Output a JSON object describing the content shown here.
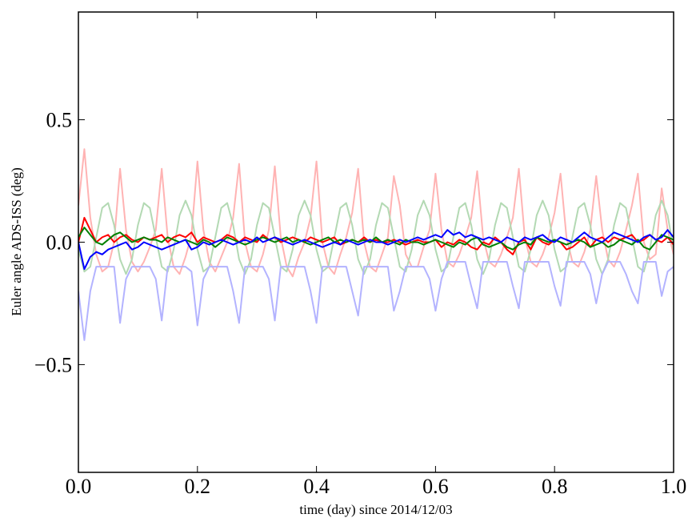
{
  "chart_data": {
    "type": "line",
    "x_label": "time (day) since 2014/12/03",
    "y_label": "Euler angle ADS-ISS (deg)",
    "xlim": [
      0,
      1
    ],
    "ylim": [
      -0.94,
      0.94
    ],
    "xticks": [
      {
        "value": 0,
        "label": "0.0"
      },
      0.2,
      0.4,
      0.6,
      0.8,
      {
        "value": 1,
        "label": "1.0"
      }
    ],
    "yticks": [
      {
        "value": -0.5,
        "label": "−0.5"
      },
      {
        "value": 0,
        "label": "0.0"
      },
      0.5
    ],
    "x": [
      0,
      0.01,
      0.02,
      0.03,
      0.04,
      0.05,
      0.06,
      0.07,
      0.08,
      0.09,
      0.1,
      0.11,
      0.12,
      0.13,
      0.14,
      0.15,
      0.16,
      0.17,
      0.18,
      0.19,
      0.2,
      0.21,
      0.22,
      0.23,
      0.24,
      0.25,
      0.26,
      0.27,
      0.28,
      0.29,
      0.3,
      0.31,
      0.32,
      0.33,
      0.34,
      0.35,
      0.36,
      0.37,
      0.38,
      0.39,
      0.4,
      0.41,
      0.42,
      0.43,
      0.44,
      0.45,
      0.46,
      0.47,
      0.48,
      0.49,
      0.5,
      0.51,
      0.52,
      0.53,
      0.54,
      0.55,
      0.56,
      0.57,
      0.58,
      0.59,
      0.6,
      0.61,
      0.62,
      0.63,
      0.64,
      0.65,
      0.66,
      0.67,
      0.68,
      0.69,
      0.7,
      0.71,
      0.72,
      0.73,
      0.74,
      0.75,
      0.76,
      0.77,
      0.78,
      0.79,
      0.8,
      0.81,
      0.82,
      0.83,
      0.84,
      0.85,
      0.86,
      0.87,
      0.88,
      0.89,
      0.9,
      0.91,
      0.92,
      0.93,
      0.94,
      0.95,
      0.96,
      0.97,
      0.98,
      0.99,
      1
    ],
    "series": [
      {
        "color": "#ffb3b3",
        "values": [
          0.15,
          0.38,
          0.1,
          -0.05,
          -0.12,
          -0.1,
          0.0,
          0.3,
          0.05,
          -0.08,
          -0.12,
          -0.08,
          -0.02,
          0.05,
          0.3,
          0.02,
          -0.1,
          -0.13,
          -0.06,
          0.03,
          0.33,
          0.05,
          -0.08,
          -0.12,
          -0.06,
          0.0,
          0.1,
          0.32,
          0.0,
          -0.1,
          -0.12,
          -0.05,
          0.05,
          0.31,
          0.02,
          -0.1,
          -0.14,
          -0.06,
          0.0,
          0.1,
          0.33,
          0.0,
          -0.1,
          -0.13,
          -0.05,
          0.02,
          0.12,
          0.3,
          0.0,
          -0.1,
          -0.12,
          -0.05,
          0.02,
          0.27,
          0.15,
          -0.05,
          -0.1,
          -0.1,
          -0.02,
          0.05,
          0.28,
          0.05,
          -0.08,
          -0.1,
          -0.05,
          0.02,
          0.1,
          0.29,
          0.02,
          -0.08,
          -0.1,
          -0.05,
          0.02,
          0.1,
          0.3,
          0.02,
          -0.08,
          -0.1,
          -0.05,
          0.02,
          0.12,
          0.28,
          0.02,
          -0.08,
          -0.1,
          -0.04,
          0.05,
          0.27,
          0.05,
          -0.07,
          -0.1,
          -0.04,
          0.05,
          0.15,
          0.28,
          0.0,
          -0.07,
          -0.05,
          0.22,
          0.05,
          -0.05
        ]
      },
      {
        "color": "#b3d9b3",
        "values": [
          -0.03,
          -0.12,
          -0.1,
          0.02,
          0.14,
          0.16,
          0.07,
          -0.07,
          -0.13,
          -0.07,
          0.07,
          0.16,
          0.14,
          0.02,
          -0.1,
          -0.12,
          -0.03,
          0.11,
          0.17,
          0.11,
          -0.03,
          -0.12,
          -0.1,
          0.02,
          0.14,
          0.16,
          0.07,
          -0.07,
          -0.13,
          -0.07,
          0.07,
          0.16,
          0.14,
          0.02,
          -0.1,
          -0.12,
          -0.03,
          0.11,
          0.17,
          0.11,
          -0.03,
          -0.12,
          -0.1,
          0.02,
          0.14,
          0.16,
          0.07,
          -0.07,
          -0.13,
          -0.07,
          0.07,
          0.16,
          0.14,
          0.02,
          -0.1,
          -0.12,
          -0.03,
          0.11,
          0.17,
          0.11,
          -0.03,
          -0.12,
          -0.1,
          0.02,
          0.14,
          0.16,
          0.07,
          -0.07,
          -0.13,
          -0.07,
          0.07,
          0.16,
          0.14,
          0.02,
          -0.1,
          -0.12,
          -0.03,
          0.11,
          0.17,
          0.11,
          -0.03,
          -0.12,
          -0.1,
          0.02,
          0.14,
          0.16,
          0.07,
          -0.07,
          -0.13,
          -0.07,
          0.07,
          0.16,
          0.14,
          0.02,
          -0.1,
          -0.12,
          -0.03,
          0.11,
          0.17,
          0.11,
          -0.03
        ]
      },
      {
        "color": "#b3b3ff",
        "values": [
          -0.2,
          -0.4,
          -0.2,
          -0.1,
          -0.1,
          -0.1,
          -0.1,
          -0.33,
          -0.15,
          -0.1,
          -0.1,
          -0.1,
          -0.1,
          -0.15,
          -0.32,
          -0.1,
          -0.1,
          -0.1,
          -0.1,
          -0.12,
          -0.34,
          -0.15,
          -0.1,
          -0.1,
          -0.1,
          -0.1,
          -0.2,
          -0.33,
          -0.1,
          -0.1,
          -0.1,
          -0.1,
          -0.15,
          -0.32,
          -0.1,
          -0.1,
          -0.1,
          -0.1,
          -0.1,
          -0.2,
          -0.33,
          -0.1,
          -0.1,
          -0.1,
          -0.1,
          -0.1,
          -0.2,
          -0.3,
          -0.1,
          -0.1,
          -0.1,
          -0.1,
          -0.1,
          -0.28,
          -0.2,
          -0.1,
          -0.1,
          -0.1,
          -0.1,
          -0.15,
          -0.28,
          -0.15,
          -0.08,
          -0.08,
          -0.08,
          -0.08,
          -0.18,
          -0.27,
          -0.08,
          -0.08,
          -0.08,
          -0.08,
          -0.08,
          -0.18,
          -0.27,
          -0.08,
          -0.08,
          -0.08,
          -0.08,
          -0.08,
          -0.18,
          -0.26,
          -0.08,
          -0.08,
          -0.08,
          -0.08,
          -0.13,
          -0.25,
          -0.13,
          -0.08,
          -0.08,
          -0.08,
          -0.13,
          -0.2,
          -0.25,
          -0.08,
          -0.08,
          -0.08,
          -0.22,
          -0.12,
          -0.1
        ]
      },
      {
        "color": "#ff0000",
        "values": [
          0,
          0.1,
          0.05,
          0.0,
          0.02,
          0.03,
          0.0,
          0.02,
          0.03,
          0.01,
          0.0,
          0.02,
          0.01,
          0.02,
          0.03,
          0.0,
          0.02,
          0.03,
          0.02,
          0.04,
          0.0,
          0.02,
          0.01,
          0.0,
          0.01,
          0.03,
          0.02,
          0.0,
          0.02,
          0.01,
          0.0,
          0.03,
          0.01,
          0.02,
          0.0,
          0.01,
          0.02,
          0.01,
          0.0,
          0.02,
          0.01,
          0.0,
          0.01,
          0.02,
          -0.01,
          0.0,
          0.01,
          0.0,
          0.02,
          0.0,
          0.01,
          0.0,
          0.0,
          0.01,
          0.0,
          -0.01,
          0.0,
          0.01,
          0.0,
          0.0,
          0.01,
          -0.02,
          0.0,
          -0.01,
          0.01,
          0.0,
          -0.02,
          -0.03,
          0.0,
          -0.01,
          0.02,
          0.0,
          -0.03,
          -0.05,
          0.0,
          0.01,
          -0.03,
          0.02,
          0.0,
          -0.01,
          0.01,
          0.0,
          -0.03,
          -0.02,
          0.0,
          0.02,
          -0.02,
          0.01,
          0.02,
          0.0,
          0.02,
          0.01,
          0.02,
          0.03,
          0.0,
          0.01,
          0.03,
          0.01,
          0.0,
          0.02,
          -0.01
        ]
      },
      {
        "color": "#008000",
        "values": [
          0.02,
          0.06,
          0.03,
          0.0,
          -0.01,
          0.01,
          0.03,
          0.04,
          0.02,
          0.0,
          0.01,
          0.02,
          0.01,
          0.01,
          0.0,
          0.02,
          0.01,
          0.0,
          0.01,
          0.0,
          -0.01,
          0.01,
          0.0,
          -0.02,
          0.0,
          0.02,
          0.01,
          0.0,
          -0.01,
          0.0,
          0.01,
          0.02,
          0.01,
          0.0,
          0.01,
          0.02,
          0.0,
          0.01,
          0.0,
          -0.01,
          0.0,
          0.01,
          0.02,
          0.0,
          0.01,
          0.0,
          0.01,
          0.0,
          0.01,
          0.0,
          0.02,
          0.0,
          0.01,
          0.0,
          -0.01,
          0.01,
          0.0,
          0.0,
          -0.01,
          0.0,
          0.01,
          0.0,
          -0.01,
          -0.02,
          0.0,
          -0.01,
          0.01,
          0.02,
          -0.01,
          -0.02,
          -0.01,
          0.0,
          -0.02,
          -0.03,
          -0.01,
          0.0,
          -0.01,
          0.02,
          0.01,
          0.0,
          0.01,
          0.0,
          -0.01,
          0.0,
          0.01,
          0.0,
          -0.02,
          -0.01,
          0.0,
          -0.02,
          -0.01,
          0.01,
          0.0,
          -0.01,
          0.01,
          -0.02,
          -0.03,
          0.0,
          0.03,
          0.02,
          0.01
        ]
      },
      {
        "color": "#0000ff",
        "values": [
          0.0,
          -0.11,
          -0.06,
          -0.04,
          -0.05,
          -0.03,
          -0.02,
          -0.01,
          0.0,
          -0.03,
          -0.02,
          0.0,
          -0.01,
          -0.02,
          -0.03,
          -0.02,
          -0.01,
          0.0,
          0.01,
          -0.03,
          -0.02,
          0.0,
          -0.01,
          0.0,
          0.01,
          0.0,
          -0.01,
          0.0,
          0.01,
          0.0,
          0.02,
          0.0,
          0.01,
          0.02,
          0.01,
          0.0,
          -0.01,
          0.0,
          0.01,
          0.0,
          -0.01,
          -0.02,
          -0.01,
          0.0,
          -0.01,
          0.01,
          0.0,
          -0.01,
          0.0,
          0.01,
          0.0,
          0.0,
          -0.01,
          0.0,
          0.01,
          0.0,
          0.01,
          0.02,
          0.01,
          0.02,
          0.03,
          0.02,
          0.05,
          0.03,
          0.04,
          0.02,
          0.03,
          0.02,
          0.01,
          0.02,
          0.01,
          0.0,
          0.02,
          0.01,
          0.0,
          0.02,
          0.01,
          0.02,
          0.03,
          0.01,
          0.0,
          0.02,
          0.01,
          0.0,
          0.02,
          0.04,
          0.02,
          0.01,
          0.0,
          0.02,
          0.04,
          0.03,
          0.02,
          0.01,
          0.0,
          0.02,
          0.03,
          0.01,
          0.02,
          0.05,
          0.02
        ]
      }
    ]
  }
}
